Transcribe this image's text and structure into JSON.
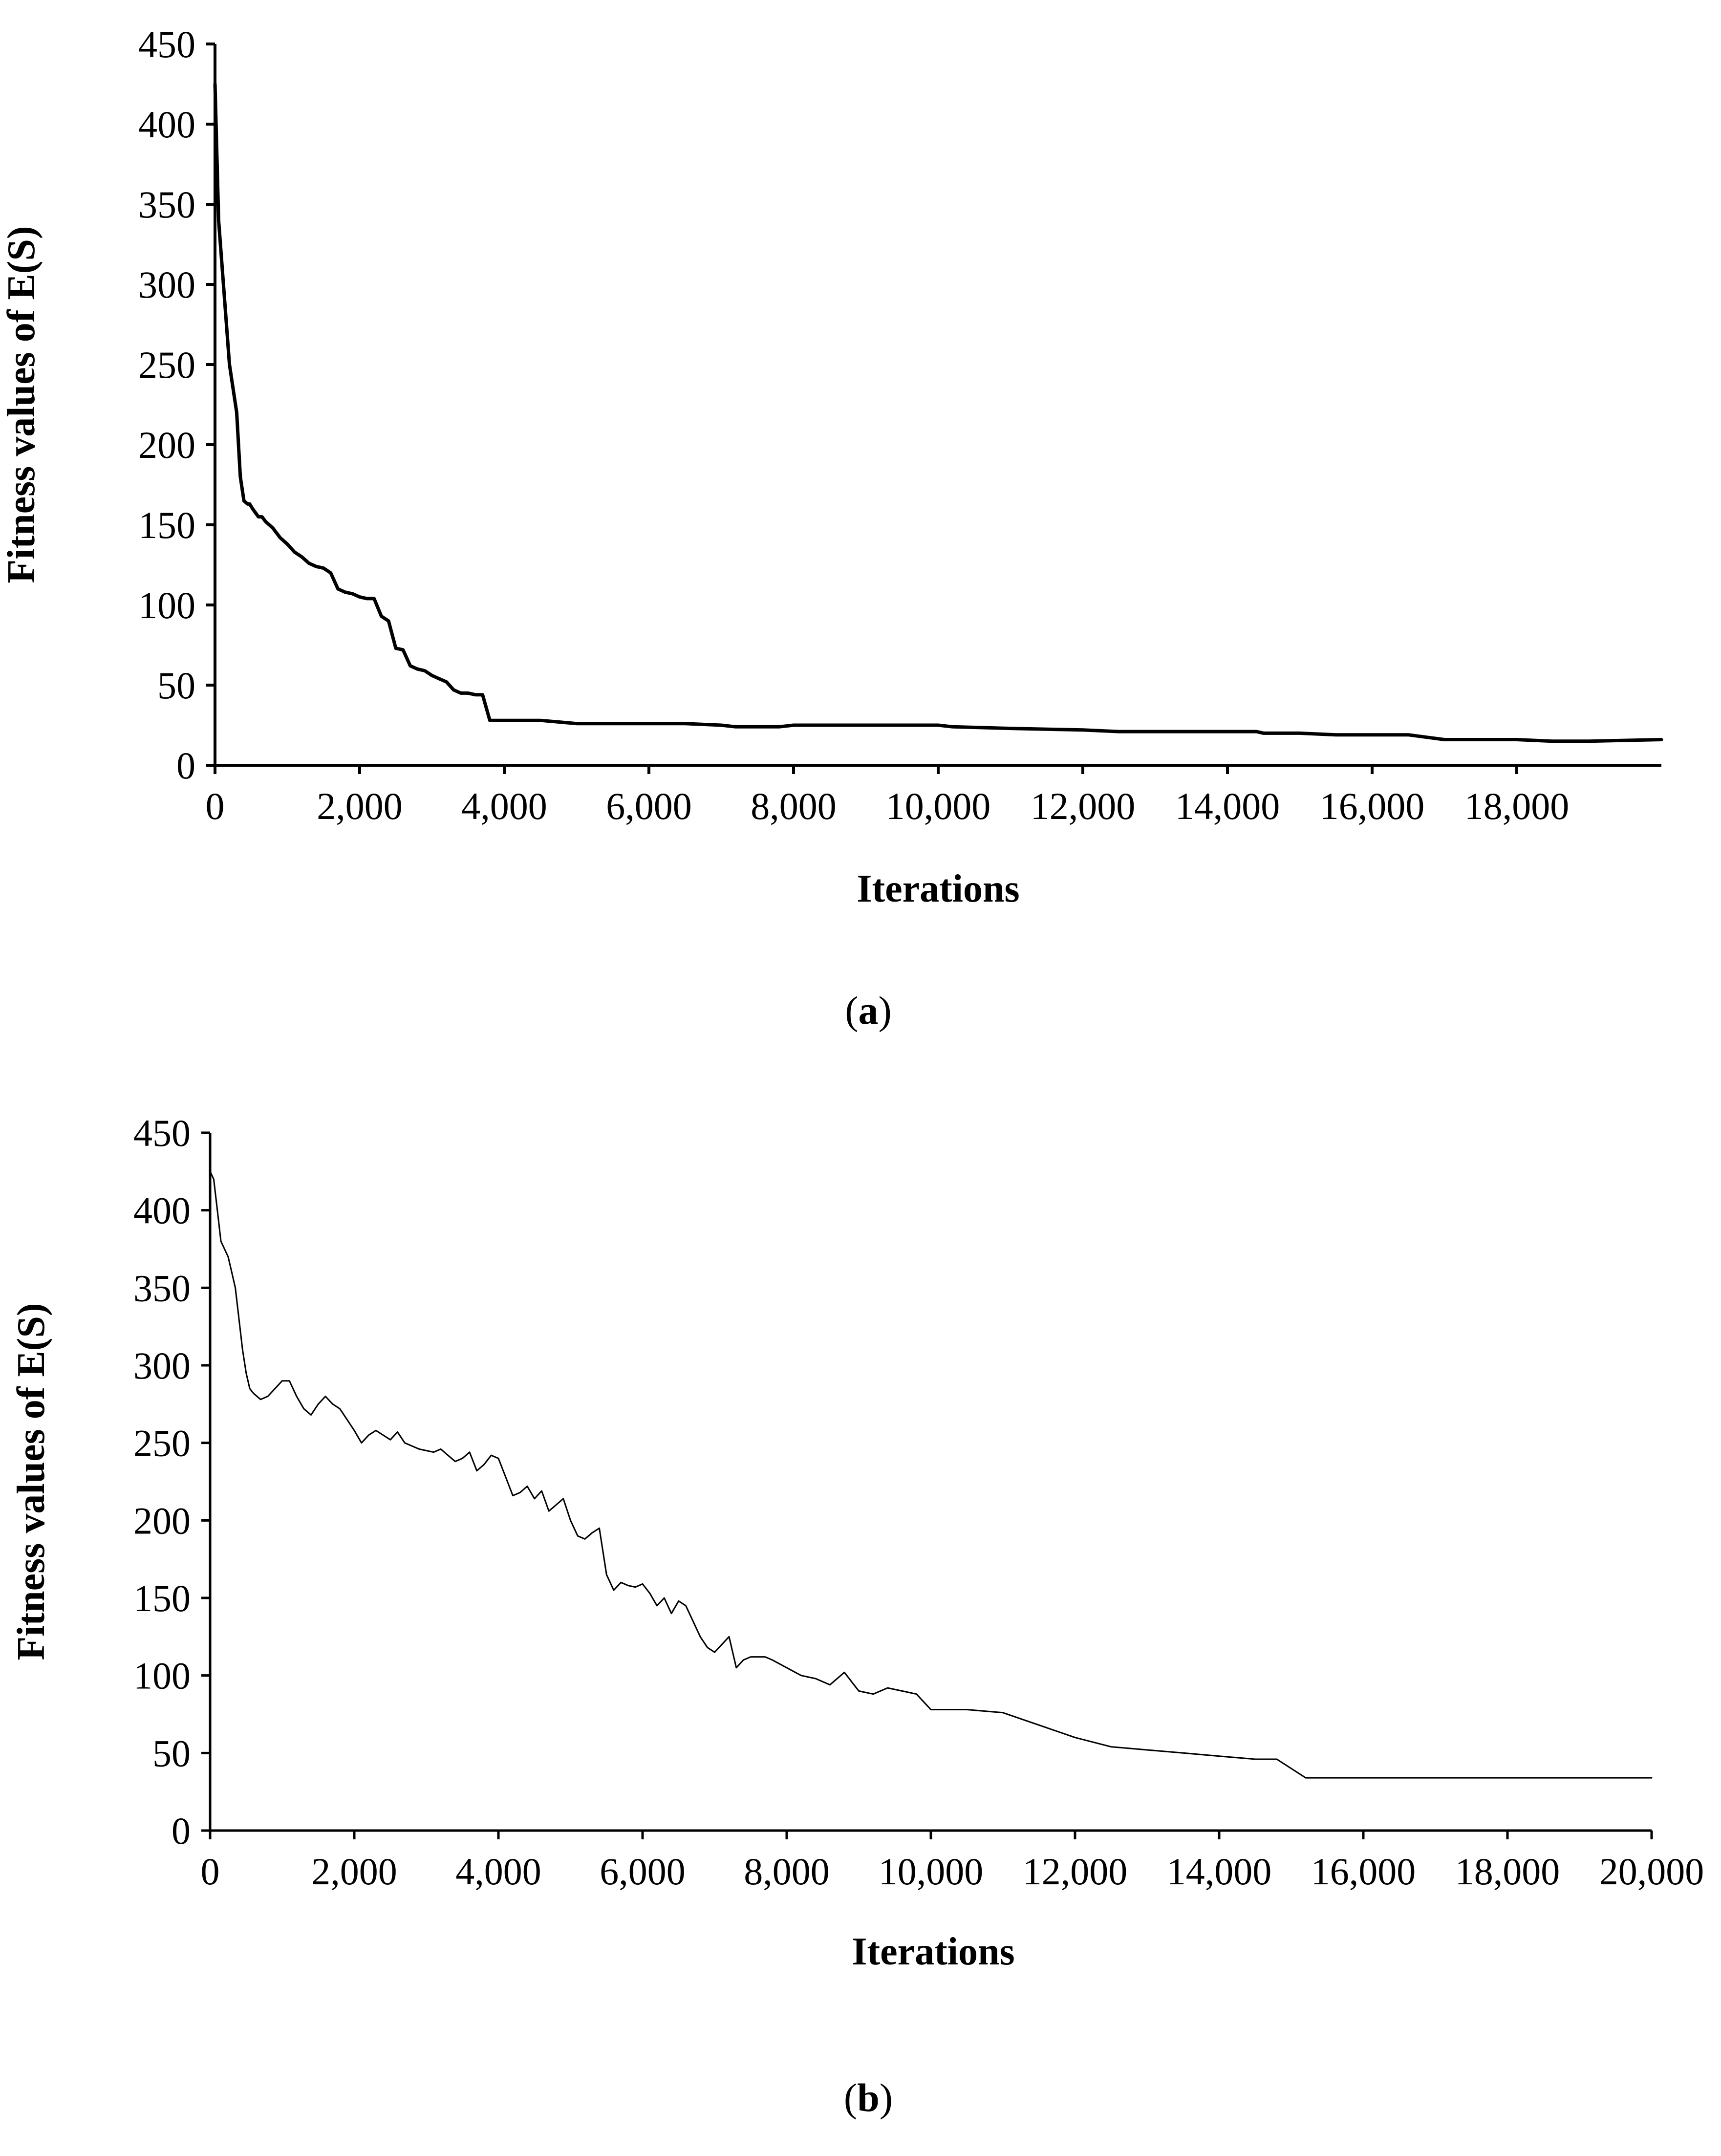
{
  "chart_data": [
    {
      "type": "line",
      "panel_label": "a",
      "xlabel": "Iterations",
      "ylabel": "Fitness values of E(S)",
      "xlim": [
        0,
        20000
      ],
      "ylim": [
        0,
        450
      ],
      "xticks": [
        "0",
        "2,000",
        "4,000",
        "6,000",
        "8,000",
        "10,000",
        "12,000",
        "14,000",
        "16,000",
        "18,000"
      ],
      "xtick_values": [
        0,
        2000,
        4000,
        6000,
        8000,
        10000,
        12000,
        14000,
        16000,
        18000
      ],
      "yticks": [
        "0",
        "50",
        "100",
        "150",
        "200",
        "250",
        "300",
        "350",
        "400",
        "450"
      ],
      "ytick_values": [
        0,
        50,
        100,
        150,
        200,
        250,
        300,
        350,
        400,
        450
      ],
      "grid": false,
      "line_color": "#000000",
      "series": [
        {
          "x": [
            0,
            20,
            50,
            100,
            150,
            200,
            250,
            300,
            350,
            400,
            450,
            480,
            520,
            600,
            650,
            700,
            800,
            900,
            1000,
            1100,
            1200,
            1300,
            1400,
            1500,
            1600,
            1700,
            1800,
            1900,
            2000,
            2100,
            2200,
            2300,
            2400,
            2500,
            2600,
            2700,
            2800,
            2900,
            3000,
            3100,
            3200,
            3300,
            3400,
            3500,
            3600,
            3700,
            3800,
            4000,
            4500,
            5000,
            5500,
            6000,
            6500,
            7000,
            7200,
            7500,
            7800,
            8000,
            9000,
            10000,
            10200,
            11000,
            12000,
            12500,
            13000,
            14000,
            14400,
            14500,
            15000,
            15500,
            16000,
            16500,
            17000,
            18000,
            18500,
            19000,
            20000
          ],
          "y": [
            425,
            390,
            340,
            310,
            280,
            250,
            235,
            220,
            180,
            165,
            163,
            163,
            160,
            155,
            155,
            152,
            148,
            142,
            138,
            133,
            130,
            126,
            124,
            123,
            120,
            110,
            108,
            107,
            105,
            104,
            104,
            93,
            90,
            73,
            72,
            62,
            60,
            59,
            56,
            54,
            52,
            47,
            45,
            45,
            44,
            44,
            28,
            28,
            28,
            26,
            26,
            26,
            26,
            25,
            24,
            24,
            24,
            25,
            25,
            25,
            24,
            23,
            22,
            21,
            21,
            21,
            21,
            20,
            20,
            19,
            19,
            19,
            16,
            16,
            15,
            15,
            16
          ]
        }
      ]
    },
    {
      "type": "line",
      "panel_label": "b",
      "xlabel": "Iterations",
      "ylabel": "Fitness values of E(S)",
      "xlim": [
        0,
        20000
      ],
      "ylim": [
        0,
        450
      ],
      "xticks": [
        "0",
        "2,000",
        "4,000",
        "6,000",
        "8,000",
        "10,000",
        "12,000",
        "14,000",
        "16,000",
        "18,000",
        "20,000"
      ],
      "xtick_values": [
        0,
        2000,
        4000,
        6000,
        8000,
        10000,
        12000,
        14000,
        16000,
        18000,
        20000
      ],
      "yticks": [
        "0",
        "50",
        "100",
        "150",
        "200",
        "250",
        "300",
        "350",
        "400",
        "450"
      ],
      "ytick_values": [
        0,
        50,
        100,
        150,
        200,
        250,
        300,
        350,
        400,
        450
      ],
      "grid": false,
      "line_color": "#000000",
      "series": [
        {
          "x": [
            0,
            50,
            100,
            150,
            200,
            250,
            300,
            350,
            400,
            450,
            500,
            550,
            600,
            700,
            800,
            900,
            1000,
            1100,
            1200,
            1300,
            1400,
            1500,
            1600,
            1700,
            1800,
            1900,
            2000,
            2100,
            2200,
            2300,
            2400,
            2500,
            2600,
            2700,
            2800,
            2900,
            3000,
            3100,
            3200,
            3300,
            3400,
            3500,
            3600,
            3700,
            3800,
            3900,
            4000,
            4100,
            4200,
            4300,
            4400,
            4500,
            4600,
            4700,
            4800,
            4900,
            5000,
            5100,
            5200,
            5300,
            5400,
            5500,
            5600,
            5700,
            5800,
            5900,
            6000,
            6100,
            6200,
            6300,
            6400,
            6500,
            6600,
            6700,
            6800,
            6900,
            7000,
            7100,
            7200,
            7300,
            7400,
            7500,
            7600,
            7700,
            7800,
            8000,
            8200,
            8400,
            8600,
            8800,
            9000,
            9200,
            9400,
            9600,
            9800,
            10000,
            10500,
            11000,
            11500,
            12000,
            12500,
            13000,
            13500,
            14000,
            14500,
            14800,
            15200,
            16000,
            18000,
            20000
          ],
          "y": [
            425,
            420,
            400,
            380,
            375,
            370,
            360,
            350,
            330,
            310,
            295,
            285,
            282,
            278,
            280,
            285,
            290,
            290,
            280,
            272,
            268,
            275,
            280,
            275,
            272,
            265,
            258,
            250,
            255,
            258,
            255,
            252,
            257,
            250,
            248,
            246,
            245,
            244,
            246,
            242,
            238,
            240,
            244,
            232,
            236,
            242,
            240,
            228,
            216,
            218,
            222,
            214,
            219,
            206,
            210,
            214,
            200,
            190,
            188,
            192,
            195,
            165,
            155,
            160,
            158,
            157,
            159,
            153,
            145,
            150,
            140,
            148,
            145,
            135,
            125,
            118,
            115,
            120,
            125,
            105,
            110,
            112,
            112,
            112,
            110,
            105,
            100,
            98,
            94,
            102,
            90,
            88,
            92,
            90,
            88,
            78,
            78,
            76,
            68,
            60,
            54,
            52,
            50,
            48,
            46,
            46,
            34,
            34,
            34,
            34
          ]
        }
      ]
    }
  ]
}
